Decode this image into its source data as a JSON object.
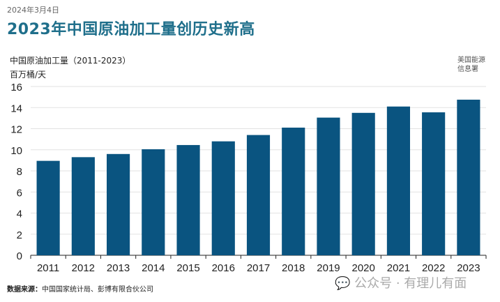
{
  "header": {
    "date": "2024年3月4日",
    "title": "2023年中国原油加工量创历史新高"
  },
  "logo": {
    "line1": "美国能源",
    "line2": "信息署"
  },
  "footer": {
    "source_label": "数据来源：",
    "source_text": "中国国家统计局、彭博有限合伙公司",
    "watermark": "公众号 · 有理儿有面"
  },
  "chart_data": {
    "type": "bar",
    "title": "中国原油加工量（2011-2023）",
    "ylabel": "百万桶/天",
    "categories": [
      "2011",
      "2012",
      "2013",
      "2014",
      "2015",
      "2016",
      "2017",
      "2018",
      "2019",
      "2020",
      "2021",
      "2022",
      "2023"
    ],
    "values": [
      8.95,
      9.3,
      9.6,
      10.05,
      10.45,
      10.8,
      11.4,
      12.1,
      13.05,
      13.5,
      14.1,
      13.55,
      14.75
    ],
    "ylim": [
      0,
      16
    ],
    "yticks": [
      0,
      2,
      4,
      6,
      8,
      10,
      12,
      14,
      16
    ],
    "grid": true,
    "bar_color": "#0a5480"
  }
}
